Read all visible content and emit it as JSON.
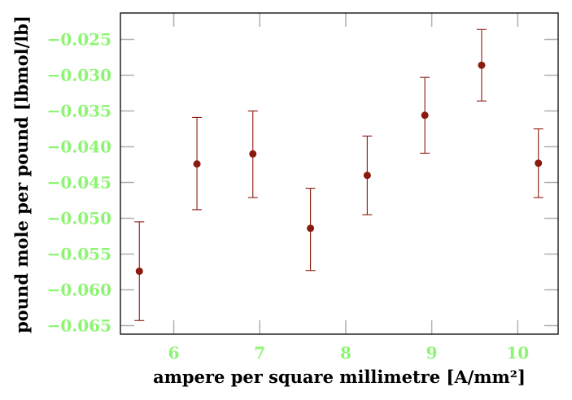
{
  "chart_data": {
    "type": "scatter",
    "title": "",
    "xlabel": "ampere per square millimetre [A/mm²]",
    "ylabel": "pound mole per pound [lbmol/lb]",
    "xlim": [
      5.38,
      10.47
    ],
    "ylim": [
      -0.0662,
      -0.0213
    ],
    "x_ticks": [
      6,
      7,
      8,
      9,
      10
    ],
    "x_tick_labels": [
      "6",
      "7",
      "8",
      "9",
      "10"
    ],
    "y_ticks": [
      -0.025,
      -0.03,
      -0.035,
      -0.04,
      -0.045,
      -0.05,
      -0.055,
      -0.06,
      -0.065
    ],
    "y_tick_labels": [
      "−0.025",
      "−0.030",
      "−0.035",
      "−0.040",
      "−0.045",
      "−0.050",
      "−0.055",
      "−0.060",
      "−0.065"
    ],
    "grid": false,
    "points": [
      {
        "x": 5.6,
        "y": -0.0574,
        "err_low": -0.0643,
        "err_high": -0.0505
      },
      {
        "x": 6.27,
        "y": -0.0424,
        "err_low": -0.0488,
        "err_high": -0.0359
      },
      {
        "x": 6.92,
        "y": -0.041,
        "err_low": -0.0471,
        "err_high": -0.035
      },
      {
        "x": 7.59,
        "y": -0.0514,
        "err_low": -0.0573,
        "err_high": -0.0458
      },
      {
        "x": 8.25,
        "y": -0.044,
        "err_low": -0.0495,
        "err_high": -0.0385
      },
      {
        "x": 8.92,
        "y": -0.0356,
        "err_low": -0.0409,
        "err_high": -0.0303
      },
      {
        "x": 9.58,
        "y": -0.0286,
        "err_low": -0.0336,
        "err_high": -0.0236
      },
      {
        "x": 10.24,
        "y": -0.0423,
        "err_low": -0.0471,
        "err_high": -0.0375
      }
    ],
    "colors": {
      "marker": "#8b1a0e",
      "tick_label": "#8cf572",
      "tick": "#b0b0b0",
      "axes": "#000000"
    }
  }
}
